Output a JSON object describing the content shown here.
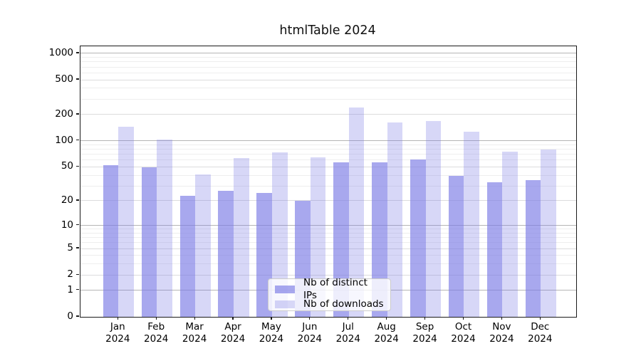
{
  "title": "htmlTable 2024",
  "chart_data": {
    "type": "bar",
    "title": "htmlTable 2024",
    "categories": [
      "Jan 2024",
      "Feb 2024",
      "Mar 2024",
      "Apr 2024",
      "May 2024",
      "Jun 2024",
      "Jul 2024",
      "Aug 2024",
      "Sep 2024",
      "Oct 2024",
      "Nov 2024",
      "Dec 2024"
    ],
    "month_line1": [
      "Jan",
      "Feb",
      "Mar",
      "Apr",
      "May",
      "Jun",
      "Jul",
      "Aug",
      "Sep",
      "Oct",
      "Nov",
      "Dec"
    ],
    "month_line2": "2024",
    "series": [
      {
        "name": "Nb of distinct IPs",
        "key": "distinct-ips",
        "color": "rgba(123,123,229,0.66)",
        "values": [
          52,
          49,
          23,
          26,
          25,
          20,
          57,
          57,
          61,
          39,
          33,
          35
        ]
      },
      {
        "name": "Nb of downloads",
        "key": "downloads",
        "color": "rgba(123,123,229,0.30)",
        "values": [
          146,
          103,
          41,
          63,
          74,
          65,
          240,
          163,
          168,
          127,
          75,
          80
        ]
      }
    ],
    "y_axis": {
      "scale": "log10(value+1)",
      "ticks": [
        1000,
        500,
        200,
        100,
        50,
        20,
        10,
        5,
        2,
        1,
        0
      ],
      "range_top": 1205
    },
    "grid": {
      "major": [
        1,
        10,
        100,
        1000
      ],
      "mid": [
        2,
        5,
        20,
        50,
        200,
        500
      ],
      "minor": [
        3,
        4,
        6,
        7,
        8,
        9,
        30,
        40,
        60,
        70,
        80,
        90,
        300,
        400,
        600,
        700,
        800,
        900
      ]
    },
    "legend_position": "lower center"
  },
  "colors": {
    "bar_base": "#7b7be5",
    "grid_major": "#b5b5b5",
    "grid_mid": "#dcdcdd",
    "grid_minor": "#eeeeee",
    "axis": "#1a1a1a",
    "legend_border": "#cccccc"
  }
}
